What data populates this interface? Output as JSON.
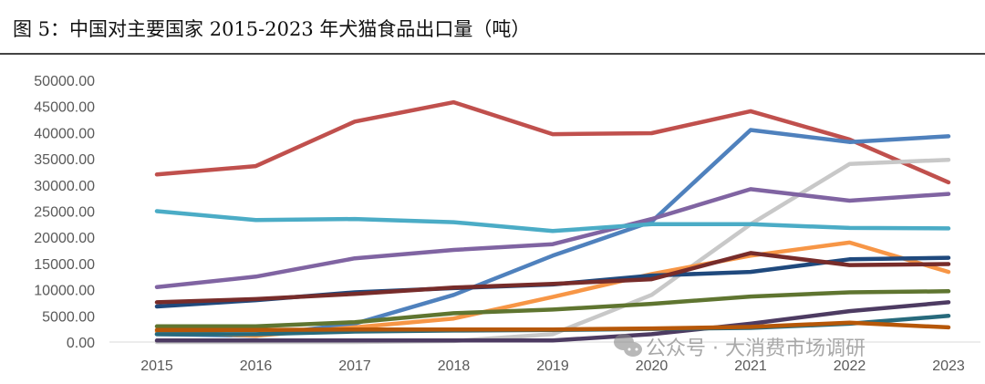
{
  "figure": {
    "title": "图 5：中国对主要国家 2015-2023 年犬猫食品出口量（吨）",
    "watermark": "公众号 · 大消费市场调研"
  },
  "chart_data": {
    "type": "line",
    "title": "中国对主要国家 2015-2023 年犬猫食品出口量（吨）",
    "xlabel": "",
    "ylabel": "",
    "x": [
      "2015",
      "2016",
      "2017",
      "2018",
      "2019",
      "2020",
      "2021",
      "2022",
      "2023"
    ],
    "ylim": [
      0,
      50000
    ],
    "yticks": [
      "0.00",
      "5000.00",
      "10000.00",
      "15000.00",
      "20000.00",
      "25000.00",
      "30000.00",
      "35000.00",
      "40000.00",
      "45000.00",
      "50000.00"
    ],
    "grid": false,
    "legend": "none",
    "series": [
      {
        "name": "series-red",
        "color": "#c0504d",
        "values": [
          32000,
          33600,
          42100,
          45800,
          39700,
          39900,
          44100,
          38700,
          30500
        ]
      },
      {
        "name": "series-blue",
        "color": "#4f81bd",
        "values": [
          1500,
          1200,
          3500,
          9000,
          16500,
          23000,
          40500,
          38200,
          39300
        ]
      },
      {
        "name": "series-gray",
        "color": "#c8c8c8",
        "values": [
          0,
          0,
          0,
          200,
          1500,
          9000,
          22500,
          34000,
          34800
        ]
      },
      {
        "name": "series-purple",
        "color": "#8064a2",
        "values": [
          10500,
          12500,
          16000,
          17600,
          18700,
          23500,
          29200,
          27000,
          28300
        ]
      },
      {
        "name": "series-cyan",
        "color": "#4bacc6",
        "values": [
          25000,
          23300,
          23500,
          22900,
          21200,
          22500,
          22500,
          21800,
          21700
        ]
      },
      {
        "name": "series-orange",
        "color": "#f79646",
        "values": [
          2000,
          1200,
          2800,
          4500,
          8600,
          13000,
          16500,
          19000,
          13400
        ]
      },
      {
        "name": "series-navy",
        "color": "#1f497d",
        "values": [
          6800,
          8000,
          9500,
          10300,
          11000,
          12700,
          13400,
          15800,
          16100
        ]
      },
      {
        "name": "series-darkred",
        "color": "#772c2a",
        "values": [
          7600,
          8200,
          9200,
          10400,
          11100,
          12000,
          17000,
          14700,
          14900
        ]
      },
      {
        "name": "series-olive",
        "color": "#5f7530",
        "values": [
          3000,
          3000,
          3800,
          5500,
          6200,
          7300,
          8700,
          9500,
          9700
        ]
      },
      {
        "name": "series-darkpurple",
        "color": "#4d3b62",
        "values": [
          300,
          300,
          300,
          300,
          300,
          1500,
          3500,
          5900,
          7600
        ]
      },
      {
        "name": "series-teal",
        "color": "#276a7c",
        "values": [
          1500,
          1500,
          2000,
          2200,
          2300,
          2500,
          2700,
          3500,
          5000
        ]
      },
      {
        "name": "series-darkorange",
        "color": "#b65708",
        "values": [
          2300,
          2300,
          2400,
          2400,
          2400,
          2600,
          2900,
          3700,
          2800
        ]
      }
    ]
  }
}
